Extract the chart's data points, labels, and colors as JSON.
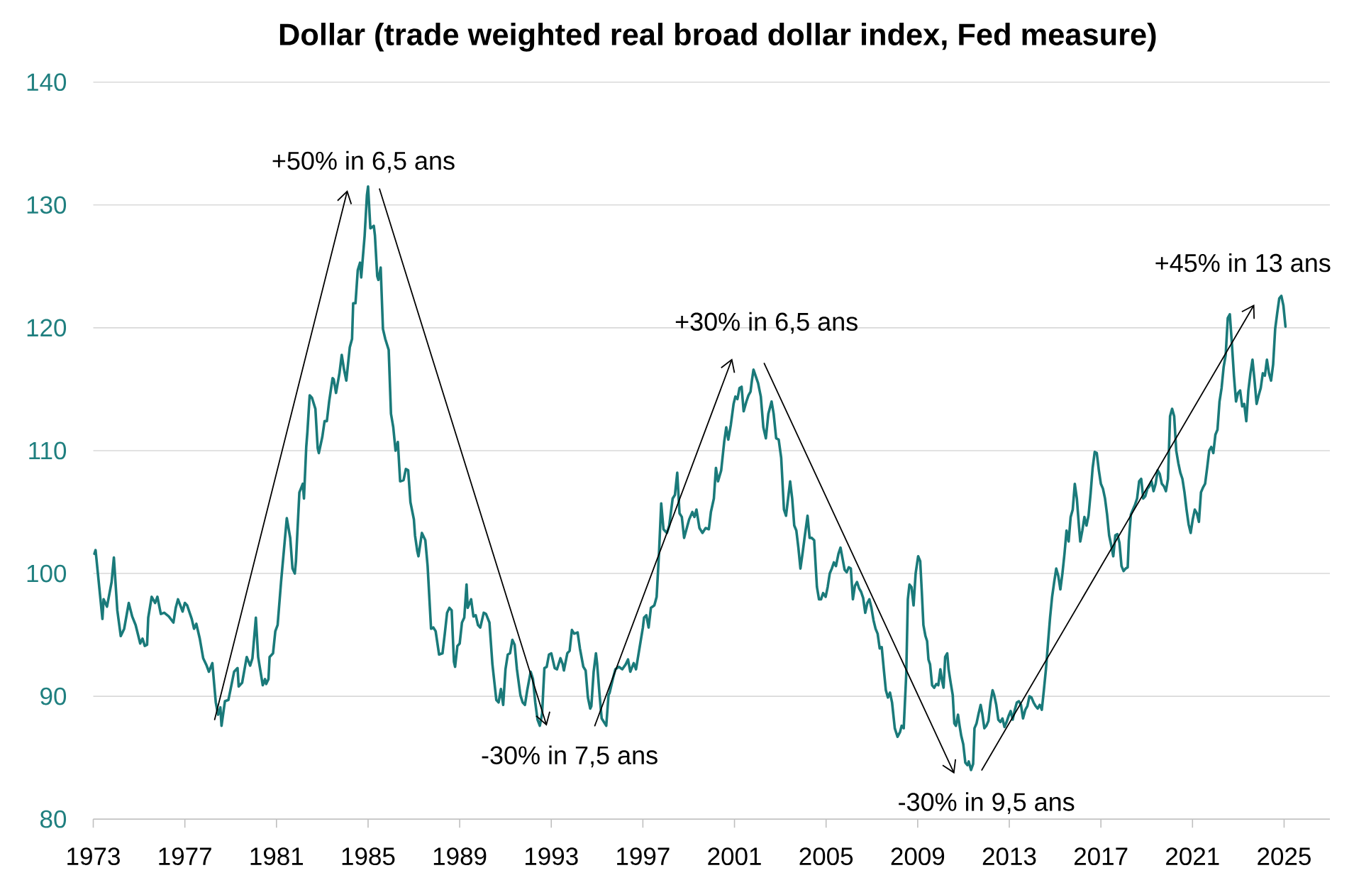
{
  "chart_data": {
    "type": "line",
    "title": "Dollar (trade weighted real broad dollar index, Fed measure)",
    "x": [
      1973.05,
      1973.1,
      1973.4,
      1973.45,
      1973.6,
      1973.8,
      1973.9,
      1974.05,
      1974.2,
      1974.35,
      1974.55,
      1974.7,
      1974.85,
      1975.05,
      1975.15,
      1975.25,
      1975.35,
      1975.4,
      1975.55,
      1975.7,
      1975.8,
      1975.95,
      1976.1,
      1976.3,
      1976.5,
      1976.6,
      1976.7,
      1976.9,
      1977.0,
      1977.1,
      1977.3,
      1977.4,
      1977.5,
      1977.65,
      1977.8,
      1977.95,
      1978.05,
      1978.2,
      1978.35,
      1978.45,
      1978.55,
      1978.6,
      1978.75,
      1978.9,
      1979.0,
      1979.15,
      1979.3,
      1979.35,
      1979.5,
      1979.7,
      1979.85,
      1979.95,
      1980.1,
      1980.2,
      1980.4,
      1980.5,
      1980.55,
      1980.65,
      1980.7,
      1980.85,
      1980.95,
      1981.05,
      1981.2,
      1981.45,
      1981.6,
      1981.7,
      1981.8,
      1981.85,
      1982.0,
      1982.15,
      1982.2,
      1982.3,
      1982.35,
      1982.45,
      1982.55,
      1982.7,
      1982.8,
      1982.85,
      1983.0,
      1983.1,
      1983.2,
      1983.3,
      1983.45,
      1983.5,
      1983.6,
      1983.75,
      1983.85,
      1983.95,
      1984.05,
      1984.2,
      1984.3,
      1984.35,
      1984.45,
      1984.55,
      1984.65,
      1984.7,
      1984.85,
      1984.95,
      1985.0,
      1985.1,
      1985.25,
      1985.3,
      1985.4,
      1985.45,
      1985.55,
      1985.65,
      1985.75,
      1985.9,
      1986.0,
      1986.1,
      1986.2,
      1986.3,
      1986.4,
      1986.55,
      1986.65,
      1986.75,
      1986.85,
      1987.0,
      1987.05,
      1987.15,
      1987.2,
      1987.35,
      1987.5,
      1987.6,
      1987.75,
      1987.85,
      1987.95,
      1988.1,
      1988.25,
      1988.35,
      1988.45,
      1988.55,
      1988.65,
      1988.75,
      1988.8,
      1988.9,
      1989.0,
      1989.1,
      1989.2,
      1989.3,
      1989.35,
      1989.5,
      1989.6,
      1989.7,
      1989.8,
      1989.9,
      1990.05,
      1990.15,
      1990.3,
      1990.43,
      1990.6,
      1990.7,
      1990.8,
      1990.9,
      1991.0,
      1991.1,
      1991.2,
      1991.3,
      1991.4,
      1991.5,
      1991.65,
      1991.75,
      1991.85,
      1991.95,
      1992.1,
      1992.2,
      1992.3,
      1992.4,
      1992.5,
      1992.6,
      1992.65,
      1992.7,
      1992.8,
      1992.9,
      1993.0,
      1993.15,
      1993.25,
      1993.4,
      1993.5,
      1993.55,
      1993.7,
      1993.8,
      1993.9,
      1994.0,
      1994.15,
      1994.25,
      1994.4,
      1994.5,
      1994.6,
      1994.7,
      1994.75,
      1994.85,
      1994.95,
      1995.0,
      1995.1,
      1995.2,
      1995.3,
      1995.4,
      1995.5,
      1995.55,
      1995.7,
      1995.8,
      1995.95,
      1996.1,
      1996.25,
      1996.35,
      1996.45,
      1996.6,
      1996.7,
      1996.85,
      1997.0,
      1997.05,
      1997.15,
      1997.25,
      1997.35,
      1997.5,
      1997.6,
      1997.7,
      1997.8,
      1997.9,
      1998.05,
      1998.15,
      1998.3,
      1998.4,
      1998.5,
      1998.6,
      1998.7,
      1998.8,
      1999.02,
      1999.16,
      1999.25,
      1999.34,
      1999.47,
      1999.6,
      1999.74,
      1999.88,
      1999.97,
      2000.1,
      2000.19,
      2000.28,
      2000.42,
      2000.55,
      2000.64,
      2000.73,
      2000.84,
      2000.96,
      2001.04,
      2001.13,
      2001.22,
      2001.31,
      2001.4,
      2001.52,
      2001.61,
      2001.7,
      2001.76,
      2001.83,
      2001.92,
      2002.03,
      2002.15,
      2002.26,
      2002.37,
      2002.48,
      2002.62,
      2002.71,
      2002.82,
      2002.93,
      2003.04,
      2003.16,
      2003.25,
      2003.34,
      2003.43,
      2003.52,
      2003.61,
      2003.7,
      2003.79,
      2003.88,
      2003.97,
      2004.06,
      2004.19,
      2004.28,
      2004.37,
      2004.48,
      2004.6,
      2004.69,
      2004.78,
      2004.87,
      2004.98,
      2005.07,
      2005.16,
      2005.25,
      2005.34,
      2005.43,
      2005.54,
      2005.63,
      2005.72,
      2005.81,
      2005.9,
      2005.99,
      2006.08,
      2006.17,
      2006.26,
      2006.35,
      2006.44,
      2006.53,
      2006.62,
      2006.71,
      2006.8,
      2006.89,
      2006.98,
      2007.07,
      2007.16,
      2007.25,
      2007.34,
      2007.43,
      2007.52,
      2007.61,
      2007.7,
      2007.79,
      2007.88,
      2008.0,
      2008.12,
      2008.23,
      2008.3,
      2008.39,
      2008.5,
      2008.57,
      2008.64,
      2008.73,
      2008.82,
      2008.91,
      2009.02,
      2009.11,
      2009.18,
      2009.25,
      2009.34,
      2009.41,
      2009.47,
      2009.54,
      2009.63,
      2009.72,
      2009.81,
      2009.9,
      2009.99,
      2010.06,
      2010.13,
      2010.2,
      2010.29,
      2010.35,
      2010.44,
      2010.53,
      2010.6,
      2010.67,
      2010.76,
      2010.83,
      2010.9,
      2010.99,
      2011.08,
      2011.17,
      2011.23,
      2011.33,
      2011.42,
      2011.48,
      2011.57,
      2011.66,
      2011.75,
      2011.82,
      2011.91,
      2012.0,
      2012.09,
      2012.18,
      2012.27,
      2012.34,
      2012.43,
      2012.52,
      2012.61,
      2012.7,
      2012.79,
      2012.88,
      2012.97,
      2013.06,
      2013.15,
      2013.24,
      2013.33,
      2013.42,
      2013.51,
      2013.6,
      2013.7,
      2013.79,
      2013.88,
      2013.97,
      2014.06,
      2014.15,
      2014.24,
      2014.33,
      2014.42,
      2014.51,
      2014.6,
      2014.69,
      2014.78,
      2014.87,
      2014.96,
      2015.05,
      2015.14,
      2015.23,
      2015.32,
      2015.41,
      2015.5,
      2015.59,
      2015.68,
      2015.77,
      2015.86,
      2015.95,
      2016.04,
      2016.1,
      2016.19,
      2016.28,
      2016.37,
      2016.46,
      2016.55,
      2016.64,
      2016.73,
      2016.82,
      2016.91,
      2017.0,
      2017.09,
      2017.18,
      2017.27,
      2017.36,
      2017.45,
      2017.54,
      2017.63,
      2017.72,
      2017.81,
      2017.9,
      2017.99,
      2018.08,
      2018.17,
      2018.22,
      2018.31,
      2018.4,
      2018.49,
      2018.58,
      2018.67,
      2018.76,
      2018.85,
      2018.94,
      2019.03,
      2019.12,
      2019.21,
      2019.3,
      2019.39,
      2019.48,
      2019.57,
      2019.66,
      2019.75,
      2019.84,
      2019.93,
      2020.02,
      2020.11,
      2020.2,
      2020.29,
      2020.38,
      2020.47,
      2020.56,
      2020.65,
      2020.74,
      2020.83,
      2020.92,
      2021.01,
      2021.1,
      2021.19,
      2021.28,
      2021.37,
      2021.46,
      2021.55,
      2021.64,
      2021.73,
      2021.82,
      2021.91,
      2022.0,
      2022.09,
      2022.18,
      2022.27,
      2022.36,
      2022.45,
      2022.54,
      2022.63,
      2022.72,
      2022.81,
      2022.9,
      2022.99,
      2023.08,
      2023.17,
      2023.26,
      2023.35,
      2023.44,
      2023.53,
      2023.62,
      2023.71,
      2023.8,
      2023.89,
      2023.98,
      2024.07,
      2024.16,
      2024.25,
      2024.34,
      2024.43,
      2024.52,
      2024.61,
      2024.7,
      2024.79,
      2024.88,
      2024.97,
      2025.06
    ],
    "series": [
      {
        "color": "#1a7a7a",
        "values": [
          101.6,
          101.9,
          96.3,
          97.9,
          97.3,
          99.3,
          101.3,
          97.0,
          94.9,
          95.5,
          97.6,
          96.5,
          95.8,
          94.3,
          94.7,
          94.1,
          94.2,
          96.4,
          98.1,
          97.6,
          98.1,
          96.7,
          96.8,
          96.5,
          96.0,
          97.2,
          97.9,
          96.9,
          97.6,
          97.4,
          96.3,
          95.5,
          95.9,
          94.7,
          93.1,
          92.5,
          92.0,
          92.7,
          89.5,
          88.5,
          89.1,
          87.6,
          89.6,
          89.7,
          90.6,
          92.0,
          92.3,
          90.8,
          91.1,
          93.2,
          92.5,
          93.1,
          96.4,
          93.2,
          90.9,
          91.4,
          91.0,
          91.4,
          93.2,
          93.5,
          95.3,
          95.8,
          99.3,
          104.5,
          102.9,
          100.4,
          100.0,
          101.0,
          106.6,
          107.3,
          106.1,
          110.3,
          111.5,
          114.5,
          114.3,
          113.4,
          110.2,
          109.8,
          111.1,
          112.4,
          112.4,
          114.0,
          115.9,
          115.8,
          114.7,
          116.3,
          117.8,
          116.6,
          115.7,
          118.4,
          119.1,
          122.0,
          122.0,
          124.7,
          125.3,
          124.1,
          127.5,
          130.8,
          131.5,
          128.1,
          128.3,
          127.5,
          124.2,
          123.9,
          124.9,
          119.9,
          119.1,
          118.2,
          113.0,
          111.9,
          110.0,
          110.7,
          107.5,
          107.6,
          108.5,
          108.4,
          105.8,
          104.4,
          103.1,
          101.8,
          101.4,
          103.3,
          102.7,
          100.6,
          95.5,
          95.6,
          95.3,
          93.4,
          93.5,
          95.1,
          96.8,
          97.2,
          97.0,
          92.8,
          92.4,
          94.1,
          94.3,
          96.0,
          96.4,
          99.1,
          97.2,
          97.9,
          96.5,
          96.6,
          95.8,
          95.6,
          96.8,
          96.7,
          96.0,
          92.6,
          89.7,
          89.5,
          90.6,
          89.3,
          92.2,
          93.4,
          93.5,
          94.6,
          94.2,
          92.2,
          90.1,
          89.5,
          89.3,
          90.5,
          92.0,
          91.4,
          89.5,
          88.1,
          87.6,
          88.6,
          90.5,
          92.3,
          92.4,
          93.4,
          93.5,
          92.3,
          92.2,
          93.1,
          92.6,
          92.1,
          93.5,
          93.7,
          95.4,
          95.1,
          95.2,
          93.9,
          92.4,
          92.1,
          89.9,
          89.0,
          89.2,
          92.0,
          93.5,
          92.7,
          90.3,
          88.2,
          87.9,
          87.6,
          90.1,
          90.3,
          91.5,
          92.2,
          92.4,
          92.2,
          92.6,
          93.0,
          92.0,
          92.7,
          92.2,
          93.9,
          95.6,
          96.4,
          96.6,
          95.6,
          97.2,
          97.4,
          98.1,
          101.5,
          105.7,
          103.6,
          103.3,
          103.9,
          106.1,
          106.4,
          108.2,
          104.9,
          104.6,
          102.9,
          104.4,
          105.0,
          104.6,
          105.2,
          103.7,
          103.3,
          103.7,
          103.6,
          105.0,
          106.1,
          108.6,
          107.5,
          108.4,
          110.7,
          111.9,
          110.9,
          112.1,
          113.8,
          114.4,
          114.2,
          115.1,
          115.2,
          113.2,
          114.0,
          114.5,
          114.8,
          115.7,
          116.6,
          116.1,
          115.5,
          114.4,
          111.9,
          111.0,
          113.0,
          114.0,
          113.0,
          111.0,
          110.9,
          109.4,
          105.2,
          104.7,
          106.1,
          107.5,
          106.1,
          103.9,
          103.5,
          102.1,
          100.4,
          101.6,
          102.9,
          104.7,
          102.9,
          102.9,
          102.7,
          98.9,
          97.9,
          97.9,
          98.4,
          98.1,
          98.9,
          100.0,
          100.4,
          100.9,
          100.6,
          101.6,
          102.1,
          101.2,
          100.3,
          100.1,
          100.5,
          100.4,
          97.9,
          99.0,
          99.3,
          98.8,
          98.5,
          98.0,
          96.8,
          97.6,
          97.9,
          97.2,
          96.2,
          95.5,
          95.1,
          93.9,
          94.0,
          92.2,
          90.5,
          89.9,
          90.3,
          89.5,
          87.4,
          86.7,
          87.1,
          87.6,
          87.4,
          91.8,
          97.9,
          99.1,
          98.9,
          97.4,
          100.0,
          101.4,
          101.0,
          98.5,
          95.8,
          94.9,
          94.5,
          93.0,
          92.6,
          90.9,
          90.7,
          91.0,
          90.9,
          92.2,
          91.3,
          90.7,
          93.2,
          93.5,
          92.2,
          91.1,
          90.1,
          87.8,
          87.6,
          88.5,
          87.6,
          86.8,
          86.1,
          84.6,
          84.4,
          84.7,
          84.0,
          84.5,
          87.4,
          87.8,
          88.6,
          89.3,
          88.6,
          87.4,
          87.6,
          88.0,
          89.5,
          90.5,
          90.1,
          89.3,
          88.1,
          87.9,
          88.2,
          87.5,
          87.9,
          88.4,
          88.8,
          88.1,
          88.9,
          89.5,
          89.6,
          89.3,
          88.2,
          88.9,
          89.2,
          90.0,
          89.9,
          89.5,
          89.2,
          89.0,
          89.3,
          88.9,
          90.5,
          92.2,
          94.3,
          96.4,
          98.1,
          99.3,
          100.4,
          99.8,
          98.7,
          100.0,
          101.6,
          103.5,
          102.6,
          104.6,
          105.2,
          107.3,
          106.1,
          103.9,
          102.6,
          103.5,
          104.6,
          103.9,
          104.7,
          106.5,
          108.6,
          109.9,
          109.8,
          108.4,
          107.3,
          106.9,
          106.1,
          104.8,
          103.1,
          102.3,
          101.4,
          103.1,
          103.2,
          102.5,
          100.6,
          100.2,
          100.4,
          100.5,
          102.7,
          104.8,
          105.2,
          105.6,
          106.1,
          107.5,
          107.7,
          106.1,
          106.3,
          106.9,
          107.1,
          107.5,
          106.7,
          107.3,
          108.4,
          108.1,
          107.3,
          107.1,
          106.7,
          107.7,
          112.8,
          113.4,
          112.8,
          110.0,
          109.0,
          108.2,
          107.7,
          106.6,
          105.2,
          104.0,
          103.3,
          104.4,
          105.2,
          104.9,
          104.2,
          106.6,
          107.0,
          107.3,
          108.6,
          110.0,
          110.3,
          109.8,
          111.3,
          111.7,
          114.0,
          115.1,
          116.8,
          117.8,
          120.8,
          121.1,
          118.7,
          116.1,
          114.0,
          114.7,
          114.9,
          113.6,
          113.8,
          112.4,
          114.9,
          116.3,
          117.4,
          115.7,
          113.8,
          114.5,
          115.1,
          116.3,
          116.1,
          117.4,
          116.3,
          115.7,
          117.0,
          119.9,
          121.2,
          122.4,
          122.6,
          121.8,
          120.1
        ]
      }
    ],
    "annotations": [
      "+50% in 6,5 ans",
      "-30% in 7,5 ans",
      "+30% in 6,5 ans",
      "-30% in 9,5 ans",
      "+45% in 13 ans"
    ],
    "xlim": [
      1973,
      2027
    ],
    "xticks": [
      1973,
      1977,
      1981,
      1985,
      1989,
      1993,
      1997,
      2001,
      2005,
      2009,
      2013,
      2017,
      2021,
      2025
    ],
    "ylim": [
      80,
      140
    ],
    "yticks": [
      80,
      90,
      100,
      110,
      120,
      130,
      140
    ],
    "grid": "y"
  }
}
